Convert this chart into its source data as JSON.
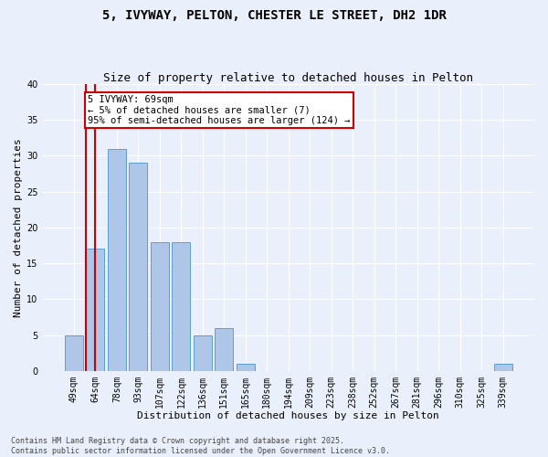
{
  "title": "5, IVYWAY, PELTON, CHESTER LE STREET, DH2 1DR",
  "subtitle": "Size of property relative to detached houses in Pelton",
  "xlabel": "Distribution of detached houses by size in Pelton",
  "ylabel": "Number of detached properties",
  "categories": [
    "49sqm",
    "64sqm",
    "78sqm",
    "93sqm",
    "107sqm",
    "122sqm",
    "136sqm",
    "151sqm",
    "165sqm",
    "180sqm",
    "194sqm",
    "209sqm",
    "223sqm",
    "238sqm",
    "252sqm",
    "267sqm",
    "281sqm",
    "296sqm",
    "310sqm",
    "325sqm",
    "339sqm"
  ],
  "values": [
    5,
    17,
    31,
    29,
    18,
    18,
    5,
    6,
    1,
    0,
    0,
    0,
    0,
    0,
    0,
    0,
    0,
    0,
    0,
    0,
    1
  ],
  "bar_color": "#aec6e8",
  "bar_edgecolor": "#5a9fd4",
  "background_color": "#eaf0fb",
  "grid_color": "#ffffff",
  "redline_x": 1.0,
  "annotation_text": "5 IVYWAY: 69sqm\n← 5% of detached houses are smaller (7)\n95% of semi-detached houses are larger (124) →",
  "annotation_box_color": "#ffffff",
  "annotation_box_edgecolor": "#cc0000",
  "ylim": [
    0,
    40
  ],
  "yticks": [
    0,
    5,
    10,
    15,
    20,
    25,
    30,
    35,
    40
  ],
  "footer": "Contains HM Land Registry data © Crown copyright and database right 2025.\nContains public sector information licensed under the Open Government Licence v3.0.",
  "title_fontsize": 10,
  "subtitle_fontsize": 9,
  "xlabel_fontsize": 8,
  "ylabel_fontsize": 8,
  "tick_fontsize": 7,
  "footer_fontsize": 6,
  "ann_fontsize": 7.5
}
